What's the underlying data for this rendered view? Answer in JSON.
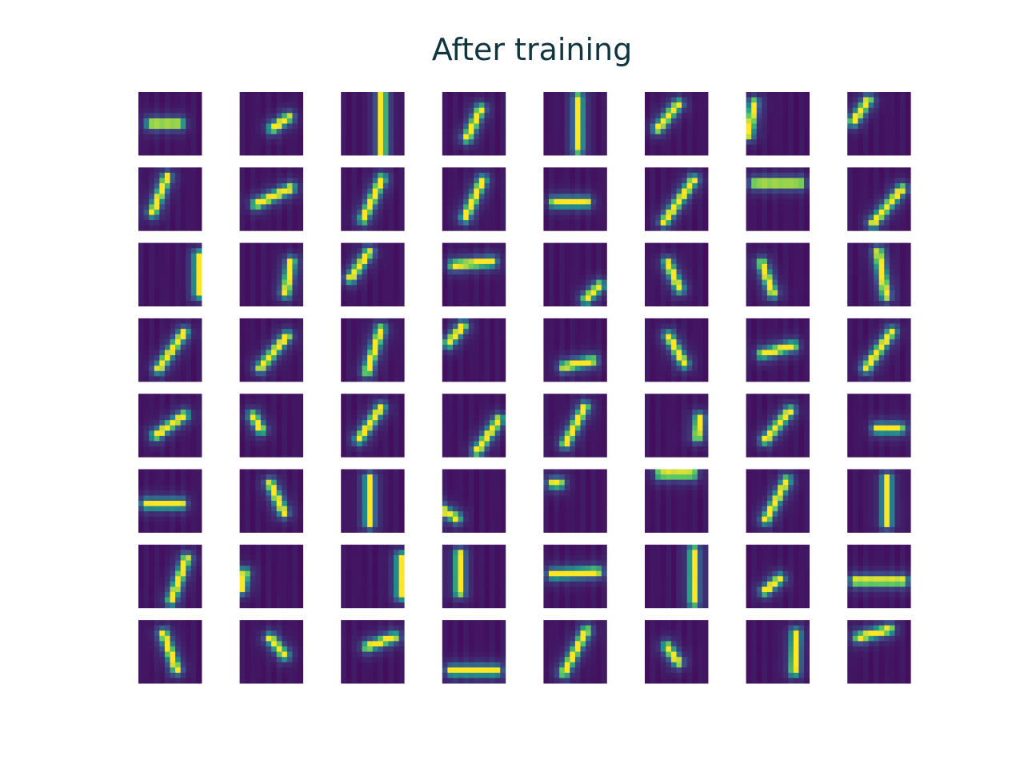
{
  "chart_data": {
    "type": "heatmap",
    "title": "After training",
    "rows": 8,
    "cols": 8,
    "patch_size": 12,
    "colormap": "viridis",
    "colormap_stops": [
      "#440154",
      "#3b528b",
      "#21918c",
      "#5ec962",
      "#fde725"
    ],
    "features": [
      {
        "kind": "line",
        "angle": 0,
        "offset": 0.0,
        "cx": -0.15,
        "len": 0.45
      },
      {
        "kind": "line",
        "angle": 35,
        "offset": 0.15,
        "cx": 0.25,
        "len": 0.3
      },
      {
        "kind": "line",
        "angle": 90,
        "offset": 0.3,
        "cx": 0.0,
        "len": 0.9
      },
      {
        "kind": "line",
        "angle": 65,
        "offset": 0.0,
        "cx": 0.0,
        "len": 0.5
      },
      {
        "kind": "line",
        "angle": 90,
        "offset": 0.1,
        "cx": 0.0,
        "len": 0.8
      },
      {
        "kind": "line",
        "angle": 50,
        "offset": -0.35,
        "cx": 0.0,
        "len": 0.5
      },
      {
        "kind": "line",
        "angle": 80,
        "offset": -0.85,
        "cx": 0.0,
        "len": 0.5
      },
      {
        "kind": "line",
        "angle": 55,
        "offset": -0.7,
        "cx": 0.0,
        "len": 0.4
      },
      {
        "kind": "line",
        "angle": 68,
        "offset": -0.35,
        "cx": 0.0,
        "len": 0.6
      },
      {
        "kind": "line",
        "angle": 25,
        "offset": -0.05,
        "cx": 0.1,
        "len": 0.6
      },
      {
        "kind": "line",
        "angle": 65,
        "offset": 0.0,
        "cx": 0.0,
        "len": 0.7
      },
      {
        "kind": "line",
        "angle": 65,
        "offset": 0.0,
        "cx": 0.0,
        "len": 0.65
      },
      {
        "kind": "line",
        "angle": 0,
        "offset": 0.1,
        "cx": -0.15,
        "len": 0.5
      },
      {
        "kind": "line",
        "angle": 55,
        "offset": 0.1,
        "cx": 0.0,
        "len": 0.8
      },
      {
        "kind": "line",
        "angle": 0,
        "offset": -0.5,
        "cx": 0.0,
        "len": 0.7
      },
      {
        "kind": "line",
        "angle": 50,
        "offset": 0.35,
        "cx": 0.0,
        "len": 0.7
      },
      {
        "kind": "line",
        "angle": 90,
        "offset": 0.9,
        "cx": 0.0,
        "len": 0.6
      },
      {
        "kind": "line",
        "angle": 80,
        "offset": 0.55,
        "cx": 0.0,
        "len": 0.5
      },
      {
        "kind": "line",
        "angle": 55,
        "offset": -0.5,
        "cx": 0.0,
        "len": 0.5
      },
      {
        "kind": "line",
        "angle": 5,
        "offset": -0.35,
        "cx": 0.0,
        "len": 0.6
      },
      {
        "kind": "line",
        "angle": 45,
        "offset": 0.8,
        "cx": 0.0,
        "len": 0.3
      },
      {
        "kind": "line",
        "angle": 115,
        "offset": -0.1,
        "cx": 0.0,
        "len": 0.45
      },
      {
        "kind": "line",
        "angle": 110,
        "offset": -0.35,
        "cx": 0.0,
        "len": 0.5
      },
      {
        "kind": "line",
        "angle": 100,
        "offset": 0.1,
        "cx": 0.0,
        "len": 0.7
      },
      {
        "kind": "line",
        "angle": 55,
        "offset": 0.05,
        "cx": 0.0,
        "len": 0.7
      },
      {
        "kind": "line",
        "angle": 50,
        "offset": 0.1,
        "cx": 0.0,
        "len": 0.65
      },
      {
        "kind": "line",
        "angle": 72,
        "offset": 0.05,
        "cx": 0.0,
        "len": 0.7
      },
      {
        "kind": "line",
        "angle": 50,
        "offset": -0.75,
        "cx": 0.0,
        "len": 0.35
      },
      {
        "kind": "line",
        "angle": 12,
        "offset": 0.45,
        "cx": 0.0,
        "len": 0.45
      },
      {
        "kind": "line",
        "angle": 120,
        "offset": 0.0,
        "cx": 0.0,
        "len": 0.5
      },
      {
        "kind": "line",
        "angle": 15,
        "offset": 0.0,
        "cx": 0.0,
        "len": 0.5
      },
      {
        "kind": "line",
        "angle": 55,
        "offset": 0.0,
        "cx": 0.0,
        "len": 0.7
      },
      {
        "kind": "line",
        "angle": 35,
        "offset": 0.0,
        "cx": 0.0,
        "len": 0.55
      },
      {
        "kind": "line",
        "angle": 120,
        "offset": -0.35,
        "cx": 0.3,
        "len": 0.25
      },
      {
        "kind": "line",
        "angle": 55,
        "offset": -0.1,
        "cx": 0.0,
        "len": 0.6
      },
      {
        "kind": "line",
        "angle": 55,
        "offset": 0.55,
        "cx": 0.0,
        "len": 0.6
      },
      {
        "kind": "line",
        "angle": 62,
        "offset": 0.0,
        "cx": 0.0,
        "len": 0.65
      },
      {
        "kind": "line",
        "angle": 85,
        "offset": 0.7,
        "cx": 0.0,
        "len": 0.3
      },
      {
        "kind": "line",
        "angle": 50,
        "offset": 0.0,
        "cx": 0.0,
        "len": 0.6
      },
      {
        "kind": "line",
        "angle": 0,
        "offset": 0.1,
        "cx": 0.3,
        "len": 0.35
      },
      {
        "kind": "line",
        "angle": 0,
        "offset": 0.1,
        "cx": -0.2,
        "len": 0.55
      },
      {
        "kind": "line",
        "angle": 115,
        "offset": 0.2,
        "cx": 0.0,
        "len": 0.5
      },
      {
        "kind": "line",
        "angle": 90,
        "offset": -0.1,
        "cx": 0.0,
        "len": 0.7
      },
      {
        "kind": "line",
        "angle": 150,
        "offset": -0.75,
        "cx": 0.5,
        "len": 0.3
      },
      {
        "kind": "line",
        "angle": 0,
        "offset": -0.55,
        "cx": -0.6,
        "len": 0.1
      },
      {
        "kind": "line",
        "angle": 0,
        "offset": -0.85,
        "cx": 0.0,
        "len": 0.5
      },
      {
        "kind": "line",
        "angle": 62,
        "offset": -0.05,
        "cx": 0.0,
        "len": 0.7
      },
      {
        "kind": "line",
        "angle": 90,
        "offset": 0.25,
        "cx": 0.0,
        "len": 0.7
      },
      {
        "kind": "line",
        "angle": 70,
        "offset": 0.3,
        "cx": 0.0,
        "len": 0.7
      },
      {
        "kind": "line",
        "angle": 80,
        "offset": -0.85,
        "cx": -0.3,
        "len": 0.25
      },
      {
        "kind": "line",
        "angle": 90,
        "offset": 0.9,
        "cx": 0.0,
        "len": 0.6
      },
      {
        "kind": "line",
        "angle": 90,
        "offset": -0.45,
        "cx": 0.1,
        "len": 0.6
      },
      {
        "kind": "line",
        "angle": 3,
        "offset": -0.1,
        "cx": 0.0,
        "len": 0.7
      },
      {
        "kind": "line",
        "angle": 90,
        "offset": 0.55,
        "cx": 0.0,
        "len": 0.8
      },
      {
        "kind": "line",
        "angle": 40,
        "offset": 0.1,
        "cx": -0.3,
        "len": 0.3
      },
      {
        "kind": "line",
        "angle": 0,
        "offset": 0.15,
        "cx": 0.0,
        "len": 0.75
      },
      {
        "kind": "line",
        "angle": 110,
        "offset": 0.0,
        "cx": 0.0,
        "len": 0.6
      },
      {
        "kind": "line",
        "angle": 130,
        "offset": 0.25,
        "cx": 0.0,
        "len": 0.35
      },
      {
        "kind": "line",
        "angle": 20,
        "offset": -0.2,
        "cx": 0.35,
        "len": 0.45
      },
      {
        "kind": "line",
        "angle": 0,
        "offset": 0.6,
        "cx": 0.0,
        "len": 0.7
      },
      {
        "kind": "line",
        "angle": 62,
        "offset": 0.0,
        "cx": 0.0,
        "len": 0.75
      },
      {
        "kind": "line",
        "angle": 125,
        "offset": -0.15,
        "cx": 0.0,
        "len": 0.3
      },
      {
        "kind": "line",
        "angle": 88,
        "offset": 0.55,
        "cx": 0.0,
        "len": 0.6
      },
      {
        "kind": "line",
        "angle": 15,
        "offset": -0.6,
        "cx": 0.0,
        "len": 0.5
      }
    ]
  }
}
